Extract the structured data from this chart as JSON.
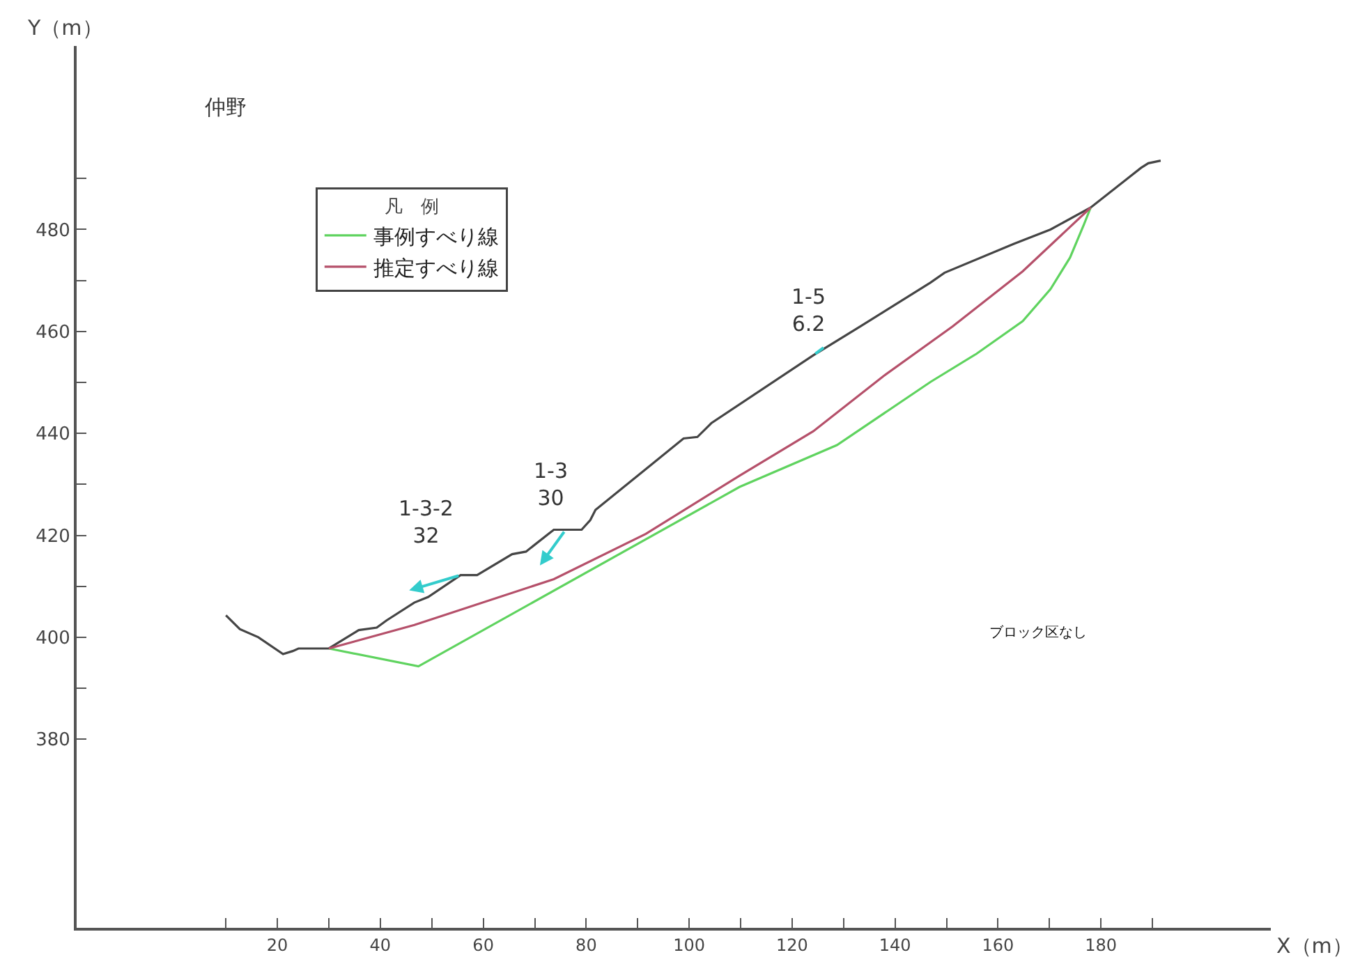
{
  "chart_data": {
    "type": "line",
    "title": "仲野",
    "xlabel": "X（m）",
    "ylabel": "Y（m）",
    "legend_title": "凡　例",
    "xlim": [
      -19,
      213
    ],
    "ylim": [
      343,
      516
    ],
    "xticks": [
      {
        "value": 10,
        "label": null
      },
      20,
      {
        "value": 30,
        "label": null
      },
      40,
      {
        "value": 50,
        "label": null
      },
      60,
      {
        "value": 70,
        "label": null
      },
      80,
      {
        "value": 90,
        "label": null
      },
      100,
      {
        "value": 110,
        "label": null
      },
      120,
      {
        "value": 130,
        "label": null
      },
      140,
      {
        "value": 150,
        "label": null
      },
      160,
      {
        "value": 170,
        "label": null
      },
      180,
      {
        "value": 190,
        "label": null
      }
    ],
    "yticks": [
      380,
      {
        "value": 390,
        "label": null
      },
      400,
      {
        "value": 410,
        "label": null
      },
      420,
      {
        "value": 430,
        "label": null
      },
      440,
      {
        "value": 450,
        "label": null
      },
      460,
      {
        "value": 470,
        "label": null
      },
      480,
      {
        "value": 490,
        "label": null
      }
    ],
    "legend": "top left",
    "marker": "none",
    "line_style": "solid",
    "series": [
      {
        "color": "#454545",
        "x": [
          10.0,
          12.7,
          16.3,
          21.1,
          23.0,
          24.1,
          30.0,
          35.8,
          39.3,
          41.2,
          46.6,
          49.3,
          55.6,
          58.8,
          65.6,
          68.3,
          73.7,
          79.1,
          80.8,
          81.8,
          92.7,
          98.9,
          101.6,
          104.3,
          124.1,
          133.3,
          146.9,
          149.6,
          163.1,
          170.2,
          178.0,
          187.8,
          189.2,
          191.6
        ],
        "values": [
          404.3,
          401.6,
          400.0,
          396.7,
          397.3,
          397.8,
          397.8,
          401.4,
          401.9,
          403.3,
          406.8,
          407.9,
          412.2,
          412.2,
          416.3,
          416.8,
          421.1,
          421.1,
          423.0,
          425.0,
          433.9,
          439.0,
          439.3,
          442.0,
          455.3,
          461.0,
          469.6,
          471.5,
          477.2,
          480.0,
          484.3,
          492.1,
          493.0,
          493.5
        ]
      },
      {
        "name": "事例すべり線",
        "color": "#5fd35f",
        "x": [
          30.0,
          47.4,
          109.8,
          128.7,
          146.9,
          155.8,
          164.8,
          170.2,
          174.0,
          176.7,
          178.0
        ],
        "values": [
          397.8,
          394.3,
          429.5,
          437.7,
          450.1,
          455.6,
          462.0,
          468.3,
          474.5,
          481.0,
          484.3
        ]
      },
      {
        "name": "推定すべり線",
        "color": "#b5506a",
        "x": [
          30.0,
          46.6,
          73.7,
          91.6,
          109.8,
          124.1,
          137.7,
          151.2,
          164.8,
          178.0
        ],
        "values": [
          397.8,
          402.4,
          411.4,
          420.3,
          431.7,
          440.4,
          451.2,
          461.0,
          471.8,
          484.3
        ]
      }
    ],
    "annotations": [
      {
        "text": "1-3-2\n32",
        "x": 55.6,
        "y": 412.2
      },
      {
        "text": "1-3\n30",
        "x": 76.0,
        "y": 421.1
      },
      {
        "text": "1-5\n6.2",
        "x": 124.1,
        "y": 455.3
      },
      "ブロック区なし"
    ]
  }
}
